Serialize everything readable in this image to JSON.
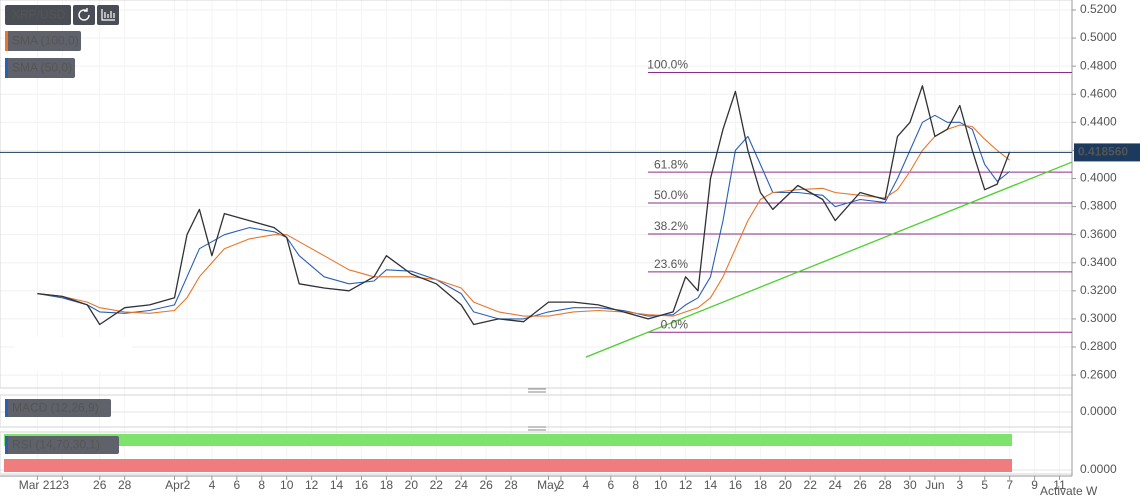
{
  "chart_data": {
    "type": "line",
    "x": [
      "Mar 21",
      "Mar 23",
      "Mar 25",
      "Mar 26",
      "Mar 28",
      "Mar 30",
      "Apr 1",
      "Apr 2",
      "Apr 3",
      "Apr 4",
      "Apr 5",
      "Apr 7",
      "Apr 9",
      "Apr 10",
      "Apr 11",
      "Apr 13",
      "Apr 15",
      "Apr 17",
      "Apr 18",
      "Apr 20",
      "Apr 22",
      "Apr 24",
      "Apr 25",
      "Apr 27",
      "Apr 29",
      "May 1",
      "May 3",
      "May 5",
      "May 7",
      "May 9",
      "May 11",
      "May 12",
      "May 13",
      "May 14",
      "May 15",
      "May 16",
      "May 17",
      "May 18",
      "May 19",
      "May 21",
      "May 23",
      "May 24",
      "May 26",
      "May 28",
      "May 29",
      "May 30",
      "May 31",
      "Jun 1",
      "Jun 2",
      "Jun 3",
      "Jun 4",
      "Jun 5",
      "Jun 6",
      "Jun 7"
    ],
    "series": [
      {
        "name": "XRP/USD",
        "color": "#2f3136",
        "values": [
          0.318,
          0.316,
          0.31,
          0.296,
          0.308,
          0.31,
          0.315,
          0.36,
          0.378,
          0.345,
          0.375,
          0.37,
          0.365,
          0.358,
          0.325,
          0.322,
          0.32,
          0.33,
          0.345,
          0.332,
          0.325,
          0.31,
          0.296,
          0.3,
          0.298,
          0.312,
          0.312,
          0.31,
          0.305,
          0.3,
          0.305,
          0.33,
          0.32,
          0.4,
          0.435,
          0.462,
          0.42,
          0.39,
          0.378,
          0.395,
          0.385,
          0.37,
          0.39,
          0.385,
          0.43,
          0.44,
          0.466,
          0.43,
          0.435,
          0.452,
          0.42,
          0.392,
          0.396,
          0.419
        ]
      },
      {
        "name": "SMA (100,0)",
        "color": "#e8762c",
        "values": [
          0.318,
          0.316,
          0.312,
          0.308,
          0.305,
          0.304,
          0.306,
          0.315,
          0.33,
          0.34,
          0.35,
          0.357,
          0.36,
          0.36,
          0.355,
          0.345,
          0.335,
          0.33,
          0.33,
          0.33,
          0.328,
          0.322,
          0.312,
          0.305,
          0.302,
          0.302,
          0.305,
          0.306,
          0.305,
          0.303,
          0.302,
          0.305,
          0.308,
          0.315,
          0.33,
          0.35,
          0.37,
          0.385,
          0.39,
          0.392,
          0.393,
          0.39,
          0.388,
          0.386,
          0.392,
          0.405,
          0.42,
          0.43,
          0.435,
          0.438,
          0.437,
          0.428,
          0.42,
          0.413
        ]
      },
      {
        "name": "SMA (50,0)",
        "color": "#2b5fb4",
        "values": [
          0.318,
          0.315,
          0.31,
          0.305,
          0.304,
          0.306,
          0.31,
          0.33,
          0.35,
          0.355,
          0.36,
          0.365,
          0.362,
          0.358,
          0.345,
          0.33,
          0.325,
          0.327,
          0.335,
          0.334,
          0.328,
          0.318,
          0.305,
          0.3,
          0.3,
          0.305,
          0.308,
          0.308,
          0.306,
          0.302,
          0.303,
          0.31,
          0.315,
          0.33,
          0.37,
          0.42,
          0.43,
          0.41,
          0.39,
          0.39,
          0.388,
          0.38,
          0.385,
          0.383,
          0.4,
          0.42,
          0.44,
          0.445,
          0.44,
          0.44,
          0.435,
          0.41,
          0.398,
          0.405
        ]
      }
    ],
    "xlim": [
      "Mar 18",
      "Jun 12"
    ],
    "xticks": [
      {
        "value": "Mar 21",
        "label": "Mar 21"
      },
      {
        "value": "Mar 23",
        "label": "23"
      },
      {
        "value": "Mar 26",
        "label": "26"
      },
      {
        "value": "Mar 28",
        "label": "28"
      },
      {
        "value": "Apr 1",
        "label": "Apr"
      },
      {
        "value": "Apr 2",
        "label": "2"
      },
      {
        "value": "Apr 4",
        "label": "4"
      },
      {
        "value": "Apr 6",
        "label": "6"
      },
      {
        "value": "Apr 8",
        "label": "8"
      },
      {
        "value": "Apr 10",
        "label": "10"
      },
      {
        "value": "Apr 12",
        "label": "12"
      },
      {
        "value": "Apr 14",
        "label": "14"
      },
      {
        "value": "Apr 16",
        "label": "16"
      },
      {
        "value": "Apr 18",
        "label": "18"
      },
      {
        "value": "Apr 20",
        "label": "20"
      },
      {
        "value": "Apr 22",
        "label": "22"
      },
      {
        "value": "Apr 24",
        "label": "24"
      },
      {
        "value": "Apr 26",
        "label": "26"
      },
      {
        "value": "Apr 28",
        "label": "28"
      },
      {
        "value": "May 1",
        "label": "May"
      },
      {
        "value": "May 2",
        "label": "2"
      },
      {
        "value": "May 4",
        "label": "4"
      },
      {
        "value": "May 6",
        "label": "6"
      },
      {
        "value": "May 8",
        "label": "8"
      },
      {
        "value": "May 10",
        "label": "10"
      },
      {
        "value": "May 12",
        "label": "12"
      },
      {
        "value": "May 14",
        "label": "14"
      },
      {
        "value": "May 16",
        "label": "16"
      },
      {
        "value": "May 18",
        "label": "18"
      },
      {
        "value": "May 20",
        "label": "20"
      },
      {
        "value": "May 22",
        "label": "22"
      },
      {
        "value": "May 24",
        "label": "24"
      },
      {
        "value": "May 26",
        "label": "26"
      },
      {
        "value": "May 28",
        "label": "28"
      },
      {
        "value": "May 30",
        "label": "30"
      },
      {
        "value": "Jun 1",
        "label": "Jun"
      },
      {
        "value": "Jun 3",
        "label": "3"
      },
      {
        "value": "Jun 5",
        "label": "5"
      },
      {
        "value": "Jun 7",
        "label": "7"
      },
      {
        "value": "Jun 9",
        "label": "9"
      },
      {
        "value": "Jun 11",
        "label": "11"
      }
    ],
    "ylim": [
      0.2508,
      0.5271
    ],
    "yticks": [
      {
        "value": 0.26,
        "label": "0.2600"
      },
      {
        "value": 0.28,
        "label": "0.2800"
      },
      {
        "value": 0.3,
        "label": "0.3000"
      },
      {
        "value": 0.32,
        "label": "0.3200"
      },
      {
        "value": 0.34,
        "label": "0.3400"
      },
      {
        "value": 0.36,
        "label": "0.3600"
      },
      {
        "value": 0.38,
        "label": "0.3800"
      },
      {
        "value": 0.4,
        "label": "0.4000"
      },
      {
        "value": 0.42,
        "label": "0.4200"
      },
      {
        "value": 0.44,
        "label": "0.4400"
      },
      {
        "value": 0.46,
        "label": "0.4600"
      },
      {
        "value": 0.48,
        "label": "0.4800"
      },
      {
        "value": 0.5,
        "label": "0.5000"
      },
      {
        "value": 0.52,
        "label": "0.5200"
      }
    ],
    "current_price": {
      "value": 0.41856,
      "label": "0.418560"
    },
    "fibonacci": [
      {
        "value": 0.4755,
        "label": "100.0%"
      },
      {
        "value": 0.4045,
        "label": "61.8%"
      },
      {
        "value": 0.3825,
        "label": "50.0%"
      },
      {
        "value": 0.3605,
        "label": "38.2%"
      },
      {
        "value": 0.3335,
        "label": "23.6%"
      },
      {
        "value": 0.2905,
        "label": "0.0%"
      }
    ],
    "trendline": {
      "color": "#4ccf2e",
      "x": [
        "May 4",
        "Jun 12"
      ],
      "values": [
        0.2728,
        0.4117
      ]
    },
    "indicators": [
      {
        "name": "MACD (12,26,9)",
        "yticks": [
          {
            "value": 0,
            "label": "0.0000"
          }
        ]
      },
      {
        "name": "RSI (14,70,30,1)",
        "yticks": [
          {
            "value": 0,
            "label": "0.0000"
          }
        ]
      }
    ],
    "watermark": "Activate W"
  }
}
